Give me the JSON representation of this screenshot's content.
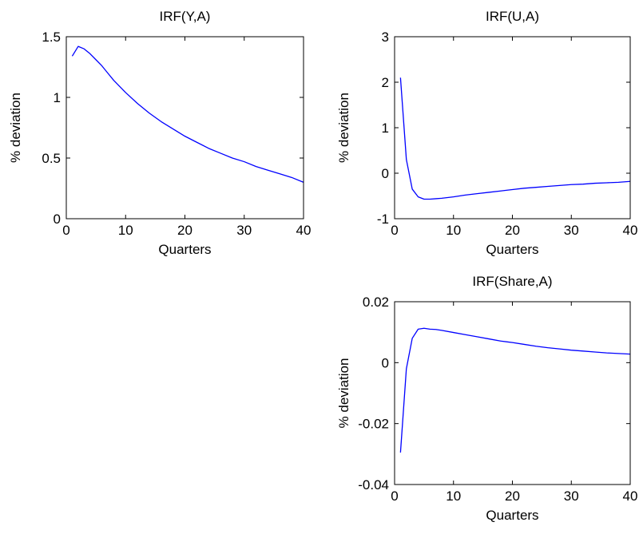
{
  "chart_data": [
    {
      "type": "line",
      "title": "IRF(Y,A)",
      "xlabel": "Quarters",
      "ylabel": "% deviation",
      "xlim": [
        0,
        40
      ],
      "ylim": [
        0,
        1.5
      ],
      "xticks": [
        0,
        10,
        20,
        30,
        40
      ],
      "xtick_labels": [
        "0",
        "10",
        "20",
        "30",
        "40"
      ],
      "yticks": [
        0,
        0.5,
        1,
        1.5
      ],
      "ytick_labels": [
        "0",
        "0.5",
        "1",
        "1.5"
      ],
      "grid": false,
      "color": "#0000ff",
      "series": [
        {
          "x": [
            1,
            2,
            3,
            4,
            5,
            6,
            7,
            8,
            9,
            10,
            12,
            14,
            16,
            18,
            20,
            22,
            24,
            26,
            28,
            30,
            32,
            34,
            36,
            38,
            40
          ],
          "values": [
            1.34,
            1.42,
            1.4,
            1.36,
            1.31,
            1.26,
            1.2,
            1.14,
            1.09,
            1.04,
            0.95,
            0.87,
            0.8,
            0.74,
            0.68,
            0.63,
            0.58,
            0.54,
            0.5,
            0.47,
            0.43,
            0.4,
            0.37,
            0.34,
            0.3
          ]
        }
      ]
    },
    {
      "type": "line",
      "title": "IRF(U,A)",
      "xlabel": "Quarters",
      "ylabel": "% deviation",
      "xlim": [
        0,
        40
      ],
      "ylim": [
        -1,
        3
      ],
      "xticks": [
        0,
        10,
        20,
        30,
        40
      ],
      "xtick_labels": [
        "0",
        "10",
        "20",
        "30",
        "40"
      ],
      "yticks": [
        -1,
        0,
        1,
        2,
        3
      ],
      "ytick_labels": [
        "-1",
        "0",
        "1",
        "2",
        "3"
      ],
      "grid": false,
      "color": "#0000ff",
      "series": [
        {
          "x": [
            1,
            2,
            3,
            4,
            5,
            6,
            7,
            8,
            10,
            12,
            14,
            16,
            18,
            20,
            22,
            24,
            26,
            28,
            30,
            32,
            34,
            36,
            38,
            40
          ],
          "values": [
            2.1,
            0.3,
            -0.35,
            -0.52,
            -0.57,
            -0.57,
            -0.56,
            -0.55,
            -0.52,
            -0.48,
            -0.45,
            -0.42,
            -0.39,
            -0.36,
            -0.33,
            -0.31,
            -0.29,
            -0.27,
            -0.25,
            -0.24,
            -0.22,
            -0.21,
            -0.2,
            -0.18
          ]
        }
      ]
    },
    {
      "type": "line",
      "title": "IRF(Share,A)",
      "xlabel": "Quarters",
      "ylabel": "% deviation",
      "xlim": [
        0,
        40
      ],
      "ylim": [
        -0.04,
        0.02
      ],
      "xticks": [
        0,
        10,
        20,
        30,
        40
      ],
      "xtick_labels": [
        "0",
        "10",
        "20",
        "30",
        "40"
      ],
      "yticks": [
        -0.04,
        -0.02,
        0,
        0.02
      ],
      "ytick_labels": [
        "-0.04",
        "-0.02",
        "0",
        "0.02"
      ],
      "grid": false,
      "color": "#0000ff",
      "series": [
        {
          "x": [
            1,
            2,
            3,
            4,
            5,
            6,
            7,
            8,
            10,
            12,
            14,
            16,
            18,
            20,
            22,
            24,
            26,
            28,
            30,
            32,
            34,
            36,
            38,
            40
          ],
          "values": [
            -0.0295,
            -0.002,
            0.008,
            0.011,
            0.0113,
            0.011,
            0.0109,
            0.0106,
            0.0099,
            0.0092,
            0.0085,
            0.0078,
            0.0071,
            0.0066,
            0.006,
            0.0054,
            0.0049,
            0.0045,
            0.0041,
            0.0038,
            0.0035,
            0.0032,
            0.003,
            0.0028
          ]
        }
      ]
    }
  ]
}
